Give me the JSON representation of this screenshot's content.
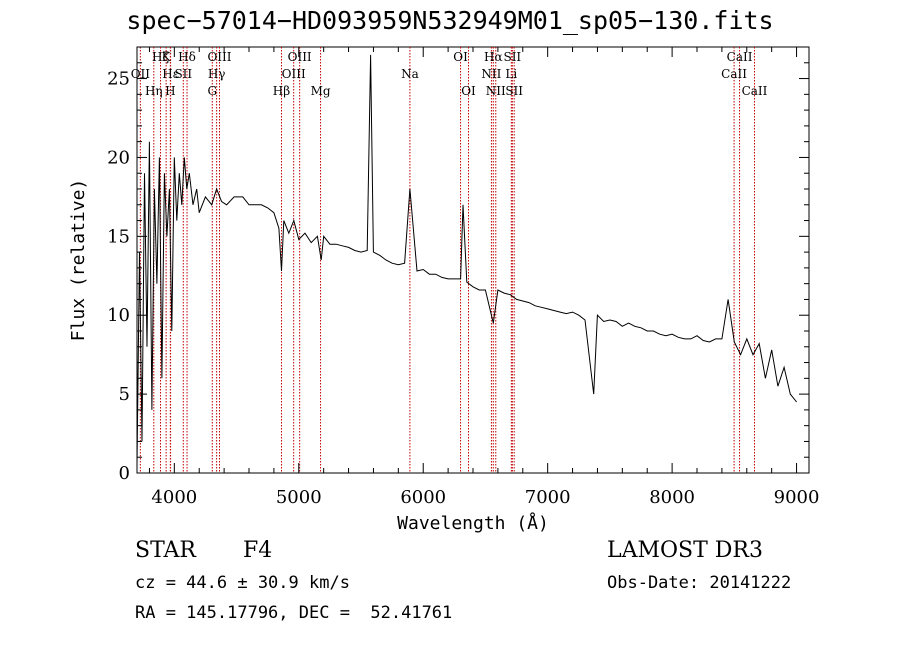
{
  "title": "spec−57014−HD093959N532949M01_sp05−130.fits",
  "info": {
    "class_type": "STAR",
    "class_sub": "F4",
    "survey": "LAMOST DR3",
    "cz": "cz = 44.6 ± 30.9 km/s",
    "obs_date": "Obs-Date: 20141222",
    "radec": "RA = 145.17796, DEC =  52.41761"
  },
  "chart_data": {
    "type": "line",
    "title": "spec−57014−HD093959N532949M01_sp05−130.fits",
    "xlabel": "Wavelength (Å)",
    "ylabel": "Flux (relative)",
    "xlim": [
      3700,
      9100
    ],
    "ylim": [
      0,
      27
    ],
    "xticks": [
      4000,
      5000,
      6000,
      7000,
      8000,
      9000
    ],
    "yticks": [
      0,
      5,
      10,
      15,
      20,
      25
    ],
    "ytick_labels": [
      "0",
      "5",
      "10",
      "15",
      "20",
      "25"
    ],
    "series": [
      {
        "name": "flux",
        "x": [
          3700,
          3720,
          3740,
          3760,
          3780,
          3800,
          3820,
          3840,
          3860,
          3880,
          3900,
          3920,
          3940,
          3960,
          3980,
          4000,
          4020,
          4040,
          4060,
          4080,
          4100,
          4120,
          4150,
          4180,
          4200,
          4250,
          4300,
          4340,
          4380,
          4420,
          4480,
          4550,
          4600,
          4650,
          4700,
          4750,
          4800,
          4840,
          4861,
          4880,
          4920,
          4960,
          5000,
          5050,
          5100,
          5150,
          5180,
          5200,
          5250,
          5300,
          5350,
          5400,
          5450,
          5500,
          5550,
          5577,
          5600,
          5650,
          5700,
          5750,
          5800,
          5850,
          5893,
          5950,
          6000,
          6050,
          6100,
          6150,
          6200,
          6250,
          6300,
          6320,
          6350,
          6400,
          6450,
          6500,
          6563,
          6600,
          6650,
          6700,
          6750,
          6800,
          6850,
          6900,
          6950,
          7000,
          7050,
          7100,
          7150,
          7200,
          7250,
          7300,
          7370,
          7400,
          7450,
          7500,
          7550,
          7600,
          7650,
          7700,
          7750,
          7800,
          7850,
          7900,
          7950,
          8000,
          8050,
          8100,
          8150,
          8200,
          8250,
          8300,
          8350,
          8400,
          8450,
          8500,
          8550,
          8600,
          8650,
          8700,
          8750,
          8800,
          8850,
          8900,
          8950,
          9000
        ],
        "y": [
          0.5,
          14,
          2,
          19,
          8,
          21,
          4,
          18,
          12,
          20,
          6,
          19,
          15,
          18,
          9,
          20,
          16,
          19,
          17,
          20,
          18,
          19,
          17,
          18,
          16.5,
          17.5,
          17,
          18,
          17.2,
          17,
          17.5,
          17.5,
          17,
          17,
          17,
          16.8,
          16.5,
          15.5,
          12.8,
          16,
          15.2,
          16,
          14.8,
          15.2,
          14.6,
          15,
          13.5,
          15,
          14.5,
          14.5,
          14.4,
          14.3,
          14.1,
          14,
          14.1,
          26.5,
          14,
          13.8,
          13.5,
          13.3,
          13.2,
          13.3,
          18,
          12.8,
          12.9,
          12.6,
          12.6,
          12.4,
          12.3,
          12.3,
          12.3,
          17,
          12.1,
          11.8,
          11.6,
          11.6,
          9.5,
          11.6,
          11.4,
          11.3,
          11,
          10.9,
          10.8,
          10.6,
          10.5,
          10.4,
          10.3,
          10.2,
          10.1,
          10.2,
          10,
          9.7,
          5,
          10,
          9.6,
          9.7,
          9.6,
          9.3,
          9.5,
          9.3,
          9.2,
          9,
          9,
          8.8,
          8.7,
          8.8,
          8.6,
          8.5,
          8.5,
          8.7,
          8.4,
          8.3,
          8.5,
          8.5,
          11,
          8.3,
          7.5,
          8.5,
          7.5,
          8.2,
          6,
          7.8,
          5.5,
          6.7,
          5,
          4.5
        ]
      }
    ],
    "lines": [
      {
        "name": "O II",
        "label": "OII",
        "wavelength": 3727,
        "row": 2
      },
      {
        "name": "H eta",
        "label": "Hη",
        "wavelength": 3835,
        "row": 3
      },
      {
        "name": "H zeta",
        "label": "Hζ",
        "wavelength": 3889,
        "row": 1
      },
      {
        "name": "H epsilon",
        "label": "Hε",
        "wavelength": 3970,
        "row": 2
      },
      {
        "name": "K",
        "label": "K",
        "wavelength": 3934,
        "row": 1
      },
      {
        "name": "H",
        "label": "H",
        "wavelength": 3968,
        "row": 3
      },
      {
        "name": "S II 4072",
        "label": "SII",
        "wavelength": 4072,
        "row": 2
      },
      {
        "name": "H delta",
        "label": "Hδ",
        "wavelength": 4102,
        "row": 1
      },
      {
        "name": "H gamma",
        "label": "Hγ",
        "wavelength": 4340,
        "row": 2
      },
      {
        "name": "G band",
        "label": "G",
        "wavelength": 4305,
        "row": 3
      },
      {
        "name": "O III 4363",
        "label": "OIII",
        "wavelength": 4363,
        "row": 1
      },
      {
        "name": "H beta",
        "label": "Hβ",
        "wavelength": 4861,
        "row": 3
      },
      {
        "name": "O III 4959",
        "label": "OIII",
        "wavelength": 4959,
        "row": 2
      },
      {
        "name": "O III 5007",
        "label": "OIII",
        "wavelength": 5007,
        "row": 1
      },
      {
        "name": "Mg",
        "label": "Mg",
        "wavelength": 5175,
        "row": 3
      },
      {
        "name": "Na",
        "label": "Na",
        "wavelength": 5893,
        "row": 2
      },
      {
        "name": "O I 6300",
        "label": "OI",
        "wavelength": 6300,
        "row": 1
      },
      {
        "name": "O I 6364",
        "label": "OI",
        "wavelength": 6364,
        "row": 3
      },
      {
        "name": "N II 6548",
        "label": "NII",
        "wavelength": 6548,
        "row": 2
      },
      {
        "name": "H alpha",
        "label": "Hα",
        "wavelength": 6563,
        "row": 1
      },
      {
        "name": "N II 6583",
        "label": "NII",
        "wavelength": 6583,
        "row": 3
      },
      {
        "name": "Li",
        "label": "Li",
        "wavelength": 6708,
        "row": 2
      },
      {
        "name": "S II 6716",
        "label": "SII",
        "wavelength": 6716,
        "row": 1
      },
      {
        "name": "S II 6731",
        "label": "SII",
        "wavelength": 6731,
        "row": 3
      },
      {
        "name": "Ca II 8498",
        "label": "CaII",
        "wavelength": 8498,
        "row": 2
      },
      {
        "name": "Ca II 8542",
        "label": "CaII",
        "wavelength": 8542,
        "row": 1
      },
      {
        "name": "Ca II 8662",
        "label": "CaII",
        "wavelength": 8662,
        "row": 3
      }
    ]
  }
}
